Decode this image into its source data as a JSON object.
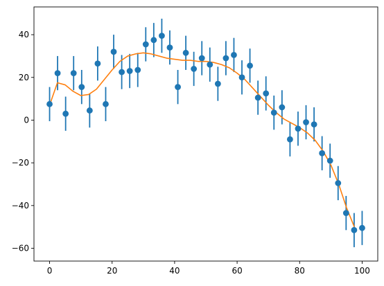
{
  "chart_data": {
    "type": "scatter",
    "title": "",
    "xlabel": "",
    "ylabel": "",
    "xlim": [
      -5,
      105
    ],
    "ylim": [
      -66,
      53
    ],
    "grid": false,
    "x_ticks": [
      0,
      20,
      40,
      60,
      80,
      100
    ],
    "y_ticks": [
      -60,
      -40,
      -20,
      0,
      20,
      40
    ],
    "x_tick_labels": [
      "0",
      "20",
      "40",
      "60",
      "80",
      "100"
    ],
    "y_tick_labels": [
      "−60",
      "−40",
      "−20",
      "0",
      "20",
      "40"
    ],
    "series": [
      {
        "kind": "errorbar",
        "color": "#1f77b4",
        "error": 8,
        "x": [
          0,
          2.56,
          5.13,
          7.69,
          10.26,
          12.82,
          15.38,
          17.95,
          20.51,
          23.08,
          25.64,
          28.21,
          30.77,
          33.33,
          35.9,
          38.46,
          41.03,
          43.59,
          46.15,
          48.72,
          51.28,
          53.85,
          56.41,
          58.97,
          61.54,
          64.1,
          66.67,
          69.23,
          71.79,
          74.36,
          76.92,
          79.49,
          82.05,
          84.62,
          87.18,
          89.74,
          92.31,
          94.87,
          97.44,
          100
        ],
        "y": [
          7.5,
          22,
          3,
          22,
          15.5,
          4.5,
          26.5,
          7.5,
          32,
          22.5,
          23,
          23.5,
          35.5,
          37.5,
          39.5,
          34,
          15.5,
          31.5,
          24,
          29,
          26,
          17,
          29,
          30.5,
          20,
          25.5,
          10.5,
          12.5,
          3.5,
          6,
          -9,
          -4,
          -1,
          -2,
          -15.5,
          -19,
          -29.5,
          -43.5,
          -51.5,
          -50.5
        ]
      },
      {
        "kind": "line",
        "color": "#ff7f0e",
        "x": [
          0,
          2.5,
          5,
          7.5,
          10,
          12.5,
          15,
          17.5,
          20,
          22.5,
          25,
          27.5,
          30,
          32.5,
          35,
          37.5,
          40,
          42.5,
          45,
          47.5,
          50,
          52.5,
          55,
          57.5,
          60,
          62.5,
          65,
          67.5,
          70,
          72.5,
          75,
          77.5,
          80,
          82.5,
          85,
          87.5,
          90,
          92.5,
          95,
          97.5
        ],
        "y": [
          7,
          17.5,
          16.5,
          13.5,
          11.5,
          12,
          14.5,
          19,
          23.5,
          27.5,
          30,
          31,
          31.5,
          31,
          30,
          29,
          28.5,
          28,
          28,
          27.5,
          27.5,
          27,
          26,
          24.5,
          22,
          19,
          15,
          11,
          7,
          3.5,
          0.5,
          -1.5,
          -3.5,
          -6,
          -9.5,
          -14.5,
          -21,
          -30,
          -41,
          -50
        ]
      }
    ]
  }
}
